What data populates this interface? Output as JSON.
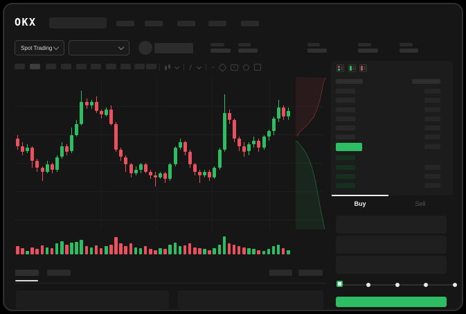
{
  "header": {
    "logo": "OKX"
  },
  "trade_toolbar": {
    "market_selector": {
      "label": "Spot Trading"
    }
  },
  "orderbook": {
    "view_modes": 3,
    "ask_rows": 6,
    "bid_rows": 4,
    "last_price_highlight_color": "#2ebd63"
  },
  "order_form": {
    "tabs": {
      "buy": "Buy",
      "sell": "Sell",
      "active": "Buy"
    },
    "fields_count": 3,
    "slider": {
      "stops": 5,
      "selected_index": 0
    }
  },
  "colors": {
    "up": "#2ebd63",
    "down": "#e8515d",
    "accent_button": "#2ebd63",
    "bid_row_tint": "#16301f"
  },
  "chart_data": {
    "type": "candlestick",
    "grid": true,
    "ylim": [
      30,
      90
    ],
    "series": [
      {
        "name": "price",
        "ohlc": [
          [
            62,
            64,
            56,
            58
          ],
          [
            58,
            60,
            53,
            55
          ],
          [
            55,
            59,
            54,
            57
          ],
          [
            57,
            58,
            46,
            50
          ],
          [
            50,
            51,
            44,
            46
          ],
          [
            46,
            47,
            39,
            44
          ],
          [
            44,
            50,
            43,
            48
          ],
          [
            48,
            49,
            43,
            45
          ],
          [
            45,
            53,
            44,
            52
          ],
          [
            52,
            60,
            51,
            58
          ],
          [
            58,
            59,
            53,
            55
          ],
          [
            55,
            68,
            54,
            64
          ],
          [
            64,
            72,
            63,
            70
          ],
          [
            70,
            88,
            69,
            82
          ],
          [
            82,
            84,
            78,
            80
          ],
          [
            80,
            83,
            78,
            82
          ],
          [
            82,
            85,
            76,
            77
          ],
          [
            77,
            78,
            73,
            75
          ],
          [
            75,
            79,
            74,
            78
          ],
          [
            78,
            80,
            69,
            70
          ],
          [
            70,
            71,
            55,
            56
          ],
          [
            56,
            57,
            50,
            52
          ],
          [
            52,
            53,
            44,
            48
          ],
          [
            48,
            49,
            41,
            43
          ],
          [
            43,
            47,
            42,
            45
          ],
          [
            45,
            49,
            43,
            48
          ],
          [
            48,
            49,
            43,
            44
          ],
          [
            44,
            45,
            40,
            42
          ],
          [
            42,
            44,
            36,
            41
          ],
          [
            41,
            44,
            40,
            43
          ],
          [
            43,
            44,
            38,
            40
          ],
          [
            40,
            49,
            39,
            48
          ],
          [
            48,
            58,
            47,
            57
          ],
          [
            57,
            62,
            56,
            60
          ],
          [
            60,
            61,
            53,
            55
          ],
          [
            55,
            56,
            46,
            48
          ],
          [
            48,
            49,
            42,
            44
          ],
          [
            44,
            45,
            38,
            42
          ],
          [
            42,
            45,
            41,
            44
          ],
          [
            44,
            45,
            39,
            41
          ],
          [
            41,
            47,
            40,
            46
          ],
          [
            46,
            57,
            45,
            56
          ],
          [
            56,
            86,
            55,
            76
          ],
          [
            76,
            78,
            70,
            72
          ],
          [
            72,
            73,
            60,
            62
          ],
          [
            62,
            63,
            55,
            58
          ],
          [
            58,
            60,
            52,
            55
          ],
          [
            55,
            60,
            53,
            59
          ],
          [
            59,
            63,
            57,
            61
          ],
          [
            61,
            62,
            55,
            57
          ],
          [
            57,
            64,
            56,
            63
          ],
          [
            63,
            67,
            61,
            66
          ],
          [
            66,
            74,
            64,
            73
          ],
          [
            73,
            83,
            71,
            79
          ],
          [
            79,
            80,
            72,
            74
          ],
          [
            74,
            79,
            72,
            77
          ]
        ]
      }
    ],
    "volume": [
      45,
      35,
      20,
      40,
      30,
      50,
      40,
      35,
      60,
      75,
      55,
      65,
      70,
      80,
      45,
      40,
      50,
      35,
      45,
      55,
      95,
      60,
      45,
      60,
      40,
      35,
      45,
      30,
      25,
      35,
      30,
      55,
      65,
      45,
      50,
      60,
      40,
      35,
      30,
      25,
      35,
      55,
      100,
      60,
      55,
      45,
      40,
      35,
      30,
      25,
      20,
      30,
      45,
      55,
      35,
      25
    ]
  }
}
